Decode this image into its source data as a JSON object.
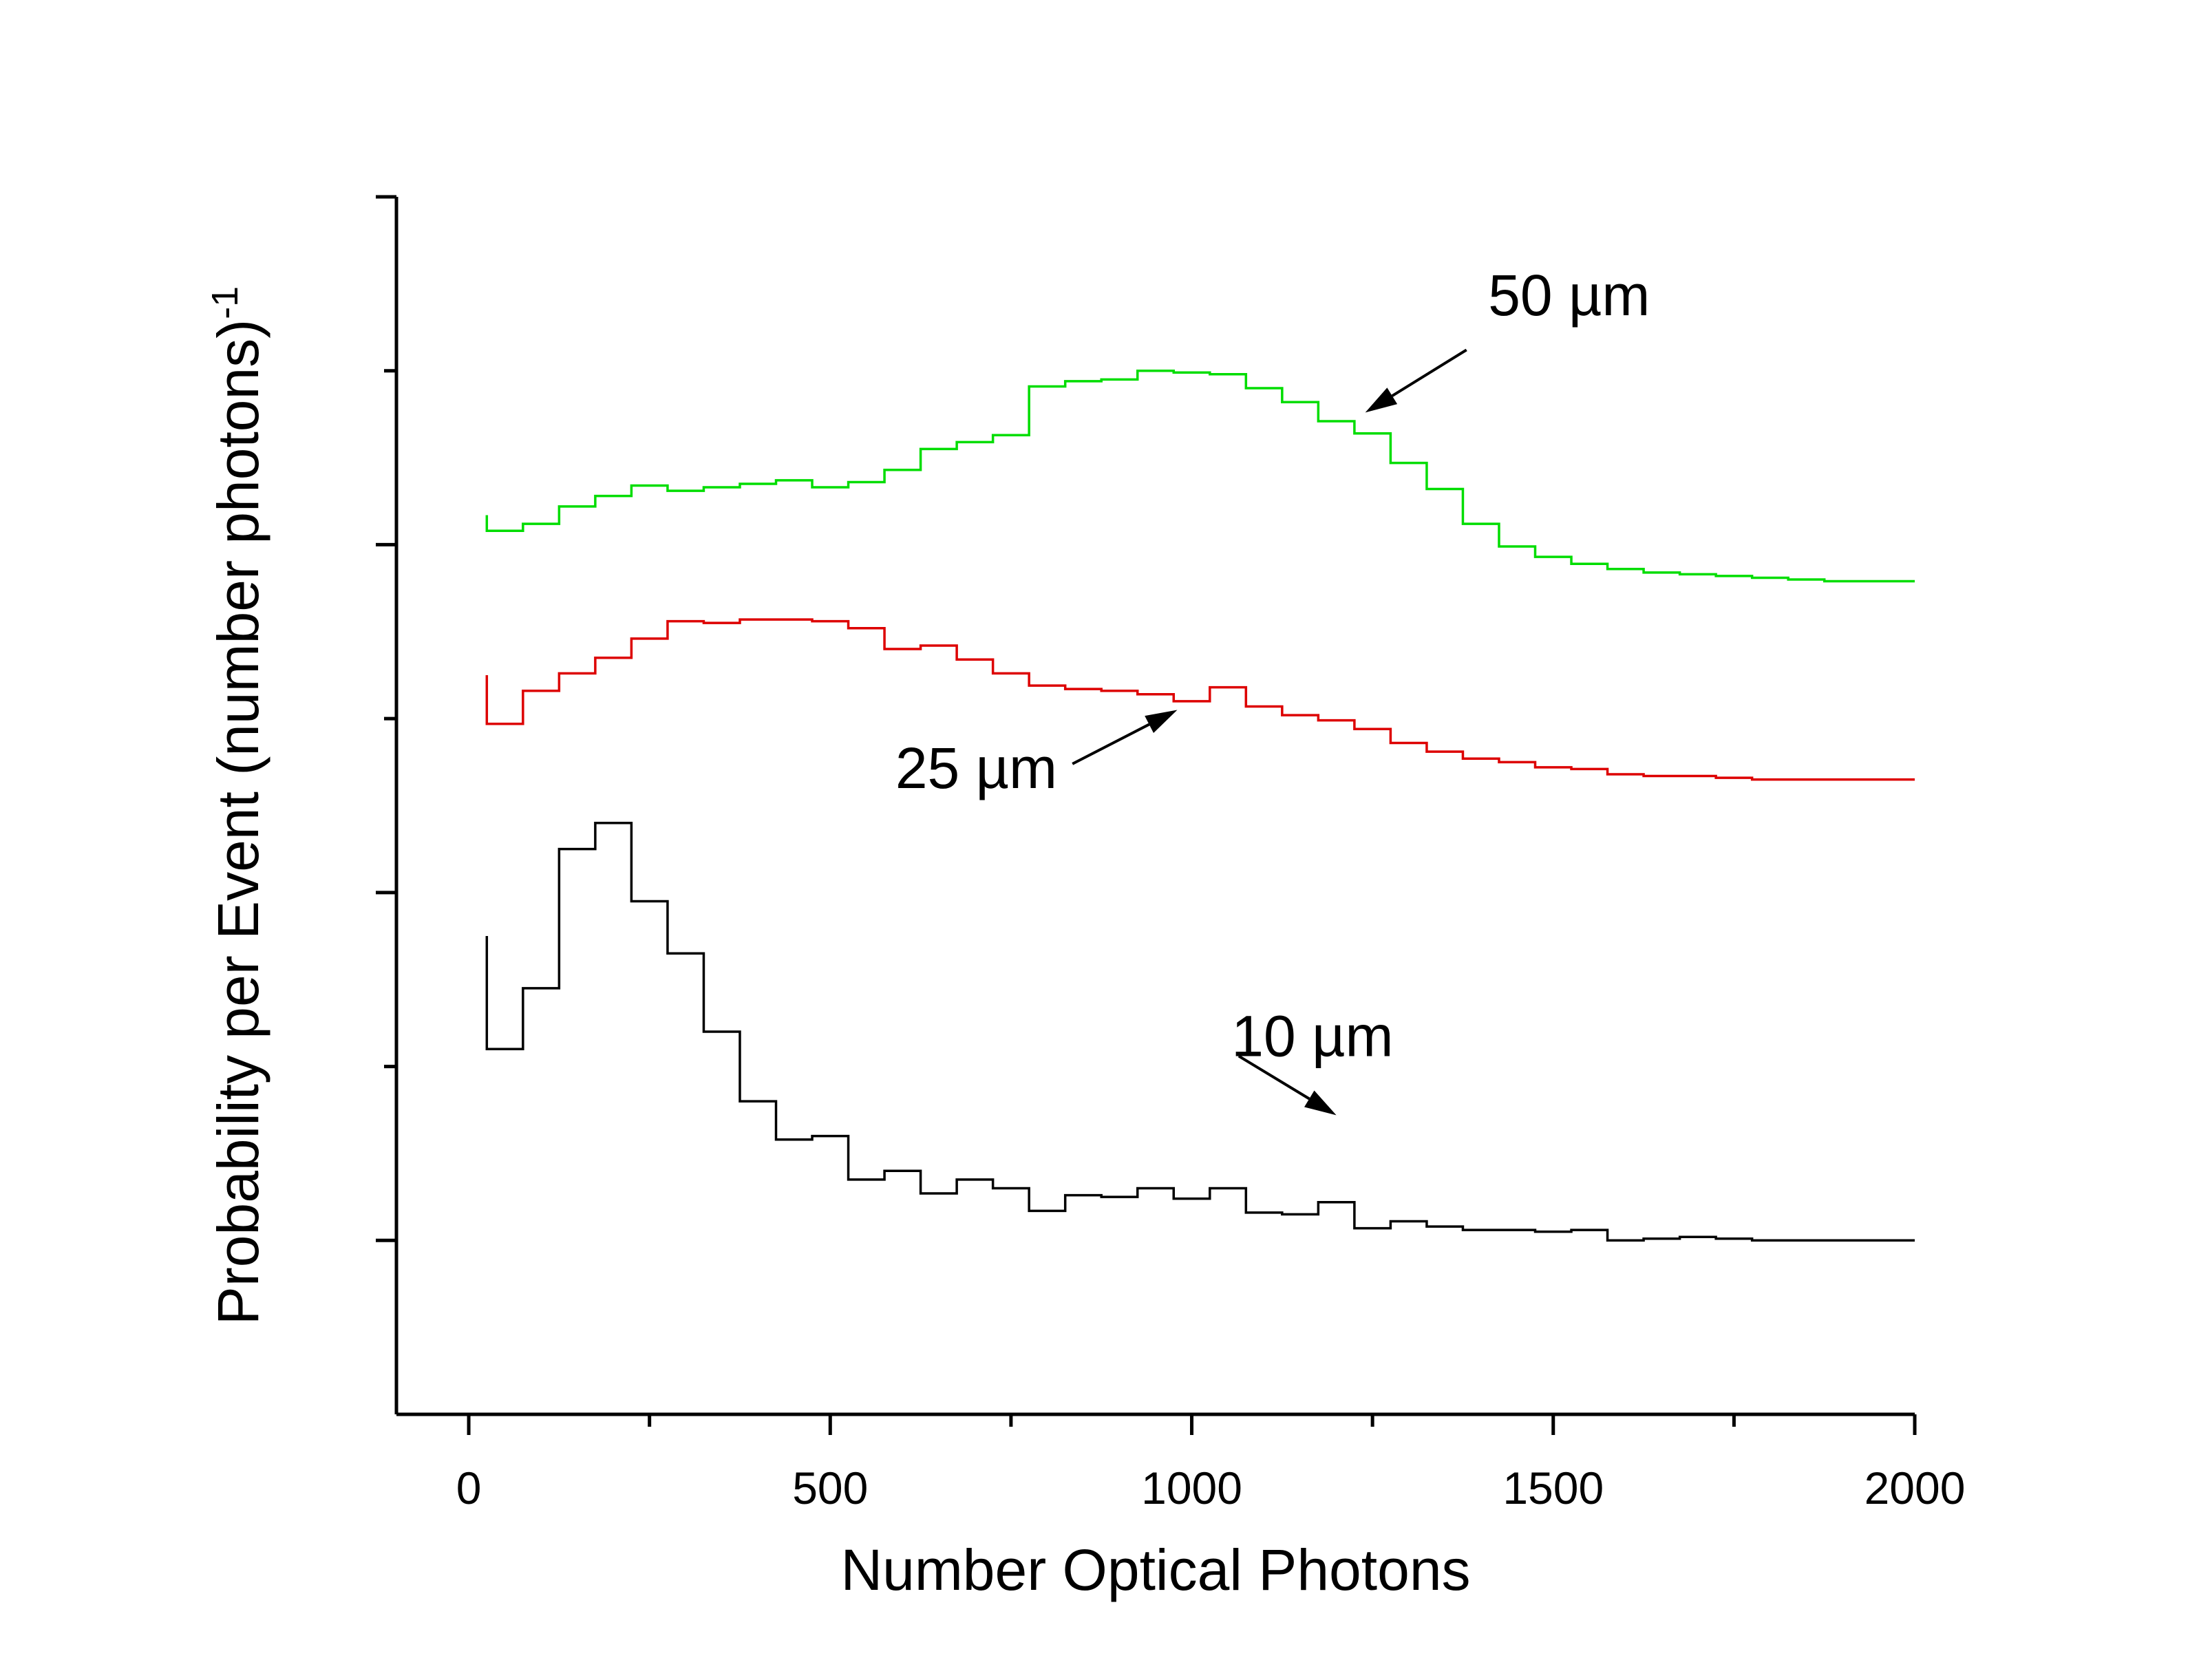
{
  "chart_data": {
    "type": "line",
    "step": true,
    "xlabel": "Number Optical Photons",
    "ylabel": "Probability per Event (number photons)",
    "ylabel_superscript": "-1",
    "xlim": [
      -100,
      2000
    ],
    "ylim": [
      0,
      7
    ],
    "xticks": [
      0,
      500,
      1000,
      1500,
      2000
    ],
    "xtick_labels": [
      "0",
      "500",
      "1000",
      "1500",
      "2000"
    ],
    "yticks": [
      1,
      2,
      3,
      4,
      5,
      6,
      7
    ],
    "yticks_labeled": false,
    "grid": false,
    "bin_edges": [
      25,
      75,
      125,
      175,
      225,
      275,
      325,
      375,
      425,
      475,
      525,
      575,
      625,
      675,
      725,
      775,
      825,
      875,
      925,
      975,
      1025,
      1075,
      1125,
      1175,
      1225,
      1275,
      1325,
      1375,
      1425,
      1475,
      1525,
      1575,
      1625,
      1675,
      1725,
      1775,
      1825,
      1875,
      1925,
      1975,
      2000
    ],
    "series": [
      {
        "name": "10 µm",
        "color": "#000000",
        "start_value": 2.75,
        "values": [
          2.1,
          2.45,
          3.25,
          3.4,
          2.95,
          2.65,
          2.2,
          1.8,
          1.58,
          1.6,
          1.35,
          1.4,
          1.27,
          1.35,
          1.3,
          1.17,
          1.26,
          1.25,
          1.3,
          1.24,
          1.3,
          1.16,
          1.15,
          1.22,
          1.07,
          1.11,
          1.08,
          1.06,
          1.06,
          1.05,
          1.06,
          1.0,
          1.01,
          1.02,
          1.01,
          1.0,
          1.0,
          1.0,
          1.0,
          1.0
        ]
      },
      {
        "name": "25 µm",
        "color": "#dd0000",
        "start_value": 4.25,
        "values": [
          3.97,
          4.16,
          4.26,
          4.35,
          4.46,
          4.56,
          4.55,
          4.57,
          4.57,
          4.56,
          4.52,
          4.4,
          4.42,
          4.34,
          4.26,
          4.19,
          4.17,
          4.16,
          4.14,
          4.1,
          4.18,
          4.07,
          4.02,
          3.99,
          3.94,
          3.86,
          3.81,
          3.77,
          3.75,
          3.72,
          3.71,
          3.68,
          3.67,
          3.67,
          3.66,
          3.65,
          3.65,
          3.65,
          3.65,
          3.65
        ]
      },
      {
        "name": "50 µm",
        "color": "#00dd00",
        "start_value": 5.17,
        "values": [
          5.08,
          5.12,
          5.22,
          5.28,
          5.34,
          5.31,
          5.33,
          5.35,
          5.37,
          5.33,
          5.36,
          5.43,
          5.55,
          5.59,
          5.63,
          5.91,
          5.94,
          5.95,
          6.0,
          5.99,
          5.98,
          5.9,
          5.82,
          5.71,
          5.64,
          5.47,
          5.32,
          5.12,
          4.99,
          4.93,
          4.89,
          4.86,
          4.84,
          4.83,
          4.82,
          4.81,
          4.8,
          4.79,
          4.79,
          4.79
        ]
      }
    ],
    "annotations": [
      {
        "text": "50 µm",
        "series_index": 2,
        "text_x": 1410,
        "text_y": 6.32,
        "arrow_from": [
          1380,
          6.12
        ],
        "arrow_to": [
          1240,
          5.76
        ]
      },
      {
        "text": "25 µm",
        "series_index": 1,
        "text_x": 590,
        "text_y": 3.6,
        "arrow_from": [
          835,
          3.74
        ],
        "arrow_to": [
          980,
          4.05
        ]
      },
      {
        "text": "10 µm",
        "series_index": 0,
        "text_x": 1055,
        "text_y": 2.06,
        "arrow_from": [
          1065,
          2.06
        ],
        "arrow_to": [
          1200,
          1.72
        ]
      }
    ]
  }
}
